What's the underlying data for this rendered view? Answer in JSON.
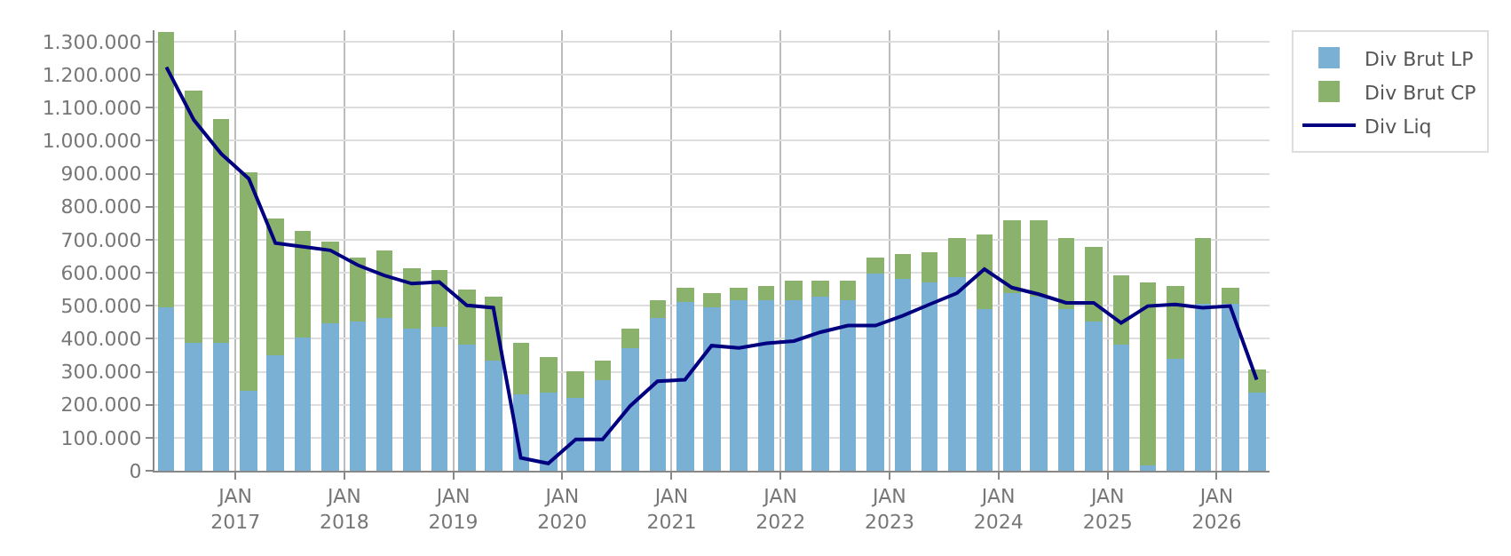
{
  "chart_data": {
    "type": "bar",
    "stacked": true,
    "x": [
      "2016-05-15",
      "2016-08-15",
      "2016-11-15",
      "2017-02-15",
      "2017-05-15",
      "2017-08-15",
      "2017-11-15",
      "2018-02-15",
      "2018-05-15",
      "2018-08-15",
      "2018-11-15",
      "2019-02-15",
      "2019-05-15",
      "2019-08-15",
      "2019-11-15",
      "2020-02-15",
      "2020-05-15",
      "2020-08-15",
      "2020-11-15",
      "2021-02-15",
      "2021-05-15",
      "2021-08-15",
      "2021-11-15",
      "2022-02-15",
      "2022-05-15",
      "2022-08-15",
      "2022-11-15",
      "2023-02-15",
      "2023-05-15",
      "2023-08-15",
      "2023-11-15",
      "2024-02-15",
      "2024-05-15",
      "2024-08-15",
      "2024-11-15",
      "2025-02-15",
      "2025-05-15",
      "2025-08-15",
      "2025-11-15",
      "2026-02-15",
      "2026-05-15"
    ],
    "series": [
      {
        "name": "Div Brut LP",
        "color": "#7ab0d4",
        "values": [
          496000,
          387000,
          387000,
          242000,
          352000,
          403000,
          448000,
          453000,
          465000,
          428000,
          435000,
          384000,
          333000,
          230000,
          237000,
          222000,
          276000,
          374000,
          465000,
          509000,
          496000,
          516000,
          519000,
          519000,
          526000,
          519000,
          596000,
          580000,
          570000,
          585000,
          489000,
          540000,
          530000,
          489000,
          453000,
          382000,
          17000,
          337000,
          504000,
          504000,
          235000
        ]
      },
      {
        "name": "Div Brut CP",
        "color": "#8bb26d",
        "values": [
          832000,
          767000,
          681000,
          663000,
          411000,
          325000,
          249000,
          193000,
          203000,
          188000,
          171000,
          166000,
          193000,
          157000,
          110000,
          79000,
          56000,
          59000,
          54000,
          46000,
          44000,
          39000,
          41000,
          56000,
          49000,
          56000,
          50000,
          77000,
          92000,
          122000,
          228000,
          218000,
          228000,
          218000,
          224000,
          208000,
          553000,
          223000,
          203000,
          51000,
          71000
        ]
      },
      {
        "name": "Div Liq",
        "type": "line",
        "color": "#000080",
        "line_style": "solid",
        "marker": "none",
        "values": [
          1223000,
          1063000,
          960000,
          885000,
          690000,
          679000,
          668000,
          623000,
          592000,
          567000,
          572000,
          501000,
          494000,
          39000,
          22000,
          95000,
          95000,
          196000,
          271000,
          276000,
          379000,
          372000,
          386000,
          393000,
          420000,
          440000,
          440000,
          470000,
          504000,
          538000,
          611000,
          555000,
          535000,
          509000,
          509000,
          448000,
          499000,
          504000,
          494000,
          499000,
          276000
        ]
      }
    ],
    "xlim": [
      "2016-04-05",
      "2026-06-27"
    ],
    "xticks": [
      {
        "value": "2017-01-01",
        "label": "JAN\n2017"
      },
      {
        "value": "2018-01-01",
        "label": "JAN\n2018"
      },
      {
        "value": "2019-01-01",
        "label": "JAN\n2019"
      },
      {
        "value": "2020-01-01",
        "label": "JAN\n2020"
      },
      {
        "value": "2021-01-01",
        "label": "JAN\n2021"
      },
      {
        "value": "2022-01-01",
        "label": "JAN\n2022"
      },
      {
        "value": "2023-01-01",
        "label": "JAN\n2023"
      },
      {
        "value": "2024-01-01",
        "label": "JAN\n2024"
      },
      {
        "value": "2025-01-01",
        "label": "JAN\n2025"
      },
      {
        "value": "2026-01-01",
        "label": "JAN\n2026"
      }
    ],
    "ylim": [
      0,
      1335000
    ],
    "yticks": [
      0,
      {
        "value": 100000,
        "label": "100.000"
      },
      {
        "value": 200000,
        "label": "200.000"
      },
      {
        "value": 300000,
        "label": "300.000"
      },
      {
        "value": 400000,
        "label": "400.000"
      },
      {
        "value": 500000,
        "label": "500.000"
      },
      {
        "value": 600000,
        "label": "600.000"
      },
      {
        "value": 700000,
        "label": "700.000"
      },
      {
        "value": 800000,
        "label": "800.000"
      },
      {
        "value": 900000,
        "label": "900.000"
      },
      {
        "value": 1000000,
        "label": "1.000.000"
      },
      {
        "value": 1100000,
        "label": "1.100.000"
      },
      {
        "value": 1200000,
        "label": "1.200.000"
      },
      {
        "value": 1300000,
        "label": "1.300.000"
      }
    ],
    "grid": true,
    "legend": "top right"
  }
}
